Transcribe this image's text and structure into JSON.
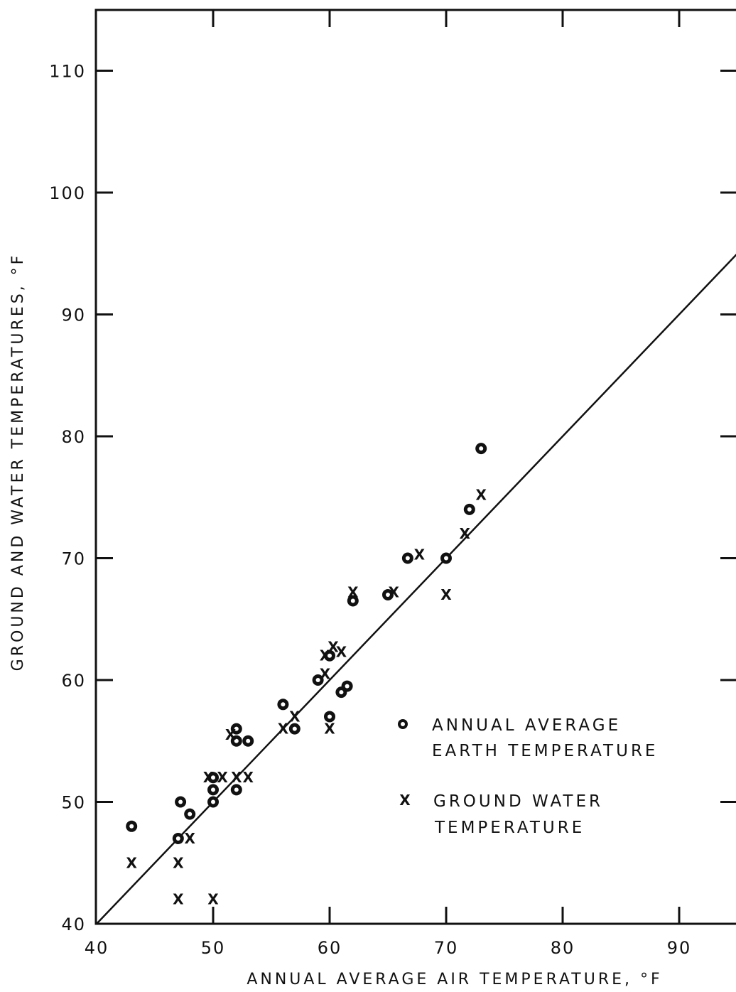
{
  "chart_data": {
    "type": "scatter",
    "title": "",
    "xlabel": "ANNUAL AVERAGE AIR TEMPERATURE, °F",
    "ylabel": "GROUND AND WATER TEMPERATURES, °F",
    "xlim": [
      40,
      95
    ],
    "ylim": [
      40,
      115
    ],
    "x_ticks": [
      40,
      50,
      60,
      70,
      80,
      90
    ],
    "y_ticks": [
      40,
      50,
      60,
      70,
      80,
      90,
      100,
      110
    ],
    "x_tick_labels": [
      "40",
      "50",
      "60",
      "70",
      "80",
      "90"
    ],
    "y_tick_labels": [
      "40",
      "50",
      "60",
      "70",
      "80",
      "90",
      "100",
      "110"
    ],
    "grid": false,
    "legend_position": "lower-right",
    "reference_line": {
      "type": "equality",
      "x": [
        40,
        95
      ],
      "y": [
        40,
        95
      ]
    },
    "series": [
      {
        "name": "ANNUAL AVERAGE EARTH TEMPERATURE",
        "legend_lines": [
          "ANNUAL AVERAGE",
          "EARTH TEMPERATURE"
        ],
        "marker": "circle",
        "points": [
          [
            43,
            48
          ],
          [
            47,
            47
          ],
          [
            47.2,
            50
          ],
          [
            48,
            49
          ],
          [
            50,
            50
          ],
          [
            50,
            51
          ],
          [
            50,
            52
          ],
          [
            52,
            51
          ],
          [
            52,
            56
          ],
          [
            52,
            55
          ],
          [
            53,
            55
          ],
          [
            56,
            58
          ],
          [
            57,
            56
          ],
          [
            59,
            60
          ],
          [
            60,
            62
          ],
          [
            60,
            57
          ],
          [
            61,
            59
          ],
          [
            61.5,
            59.5
          ],
          [
            62,
            66.5
          ],
          [
            65,
            67
          ],
          [
            66.7,
            70
          ],
          [
            70,
            70
          ],
          [
            72,
            74
          ],
          [
            73,
            79
          ]
        ]
      },
      {
        "name": "GROUND WATER TEMPERATURE",
        "legend_lines": [
          "GROUND WATER",
          "TEMPERATURE"
        ],
        "marker": "x",
        "points": [
          [
            43,
            45
          ],
          [
            47,
            45
          ],
          [
            47,
            42
          ],
          [
            48,
            47
          ],
          [
            49.6,
            52
          ],
          [
            50.8,
            52
          ],
          [
            50,
            42
          ],
          [
            51.5,
            55.5
          ],
          [
            52,
            52
          ],
          [
            53,
            52
          ],
          [
            56,
            56
          ],
          [
            57,
            57
          ],
          [
            59.6,
            62
          ],
          [
            59.6,
            60.5
          ],
          [
            60,
            56
          ],
          [
            60.3,
            62.7
          ],
          [
            61,
            62.3
          ],
          [
            62,
            67.2
          ],
          [
            65.5,
            67.2
          ],
          [
            67.7,
            70.3
          ],
          [
            70,
            67
          ],
          [
            71.6,
            72
          ],
          [
            73,
            75.2
          ]
        ]
      }
    ]
  }
}
